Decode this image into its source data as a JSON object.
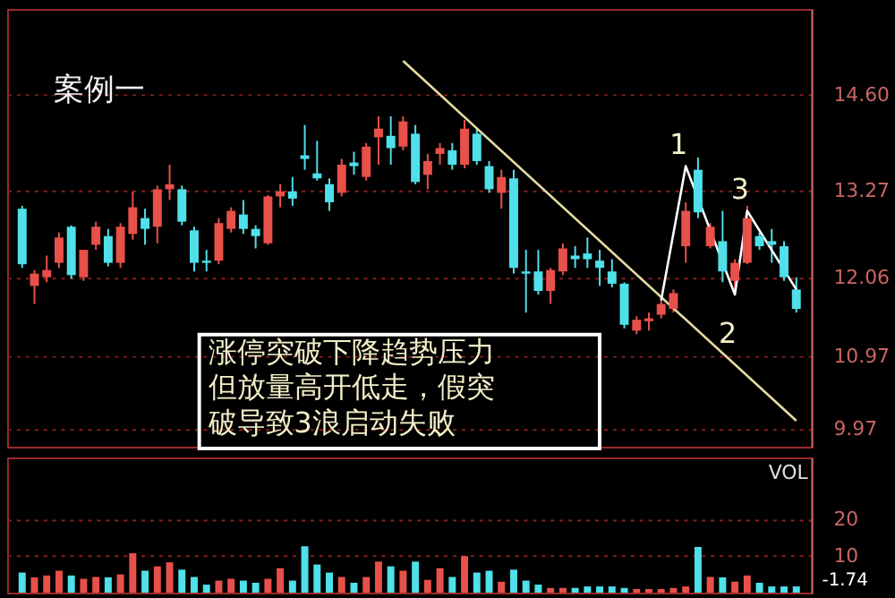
{
  "chart_data": [
    {
      "type": "candlestick",
      "title": "案例一",
      "categories": [
        null,
        null,
        null,
        null,
        null,
        null,
        null,
        null,
        null,
        null,
        null,
        null,
        null,
        null,
        null,
        null,
        null,
        null,
        null,
        null,
        null,
        null,
        null,
        null,
        null,
        null,
        null,
        null,
        null,
        null,
        null,
        null,
        null,
        null,
        null,
        null,
        null,
        null,
        null,
        null,
        null,
        null,
        null,
        null,
        null,
        null,
        null,
        null,
        null,
        null,
        null,
        null,
        null,
        null,
        null,
        null,
        null,
        null,
        null,
        null,
        null,
        null,
        null,
        null
      ],
      "ohlc": [
        [
          13.02,
          13.06,
          12.2,
          12.25
        ],
        [
          11.95,
          12.17,
          11.7,
          12.12
        ],
        [
          12.07,
          12.37,
          12.0,
          12.17
        ],
        [
          12.27,
          12.69,
          12.2,
          12.62
        ],
        [
          12.77,
          12.79,
          12.05,
          12.1
        ],
        [
          12.07,
          12.45,
          12.02,
          12.45
        ],
        [
          12.52,
          12.84,
          12.45,
          12.77
        ],
        [
          12.64,
          12.74,
          12.22,
          12.27
        ],
        [
          12.27,
          12.82,
          12.2,
          12.77
        ],
        [
          12.67,
          13.26,
          12.59,
          13.04
        ],
        [
          12.89,
          13.02,
          12.52,
          12.74
        ],
        [
          12.77,
          13.34,
          12.54,
          13.29
        ],
        [
          13.29,
          13.63,
          13.14,
          13.36
        ],
        [
          13.29,
          13.34,
          12.79,
          12.84
        ],
        [
          12.72,
          12.77,
          12.15,
          12.27
        ],
        [
          12.3,
          12.45,
          12.15,
          12.27
        ],
        [
          12.3,
          12.89,
          12.25,
          12.82
        ],
        [
          12.74,
          13.04,
          12.69,
          12.99
        ],
        [
          12.94,
          13.14,
          12.67,
          12.74
        ],
        [
          12.74,
          12.79,
          12.47,
          12.64
        ],
        [
          12.54,
          13.21,
          12.52,
          13.19
        ],
        [
          13.19,
          13.36,
          13.04,
          13.26
        ],
        [
          13.26,
          13.46,
          13.06,
          13.16
        ],
        [
          13.76,
          14.18,
          13.56,
          13.71
        ],
        [
          13.51,
          13.96,
          13.41,
          13.44
        ],
        [
          13.36,
          13.44,
          12.99,
          13.11
        ],
        [
          13.24,
          13.71,
          13.19,
          13.63
        ],
        [
          13.66,
          13.81,
          13.49,
          13.61
        ],
        [
          13.46,
          13.93,
          13.41,
          13.88
        ],
        [
          14.01,
          14.3,
          13.63,
          14.13
        ],
        [
          14.03,
          14.3,
          13.63,
          13.86
        ],
        [
          13.88,
          14.3,
          13.83,
          14.23
        ],
        [
          14.06,
          14.18,
          13.36,
          13.39
        ],
        [
          13.49,
          13.78,
          13.29,
          13.68
        ],
        [
          13.78,
          13.93,
          13.63,
          13.86
        ],
        [
          13.83,
          13.93,
          13.56,
          13.63
        ],
        [
          13.63,
          14.25,
          13.58,
          14.13
        ],
        [
          14.06,
          14.13,
          13.63,
          13.68
        ],
        [
          13.61,
          13.68,
          13.24,
          13.29
        ],
        [
          13.24,
          13.56,
          13.02,
          13.46
        ],
        [
          13.44,
          13.56,
          12.12,
          12.2
        ],
        [
          12.15,
          12.45,
          11.58,
          12.12
        ],
        [
          12.15,
          12.45,
          11.83,
          11.88
        ],
        [
          11.88,
          12.2,
          11.7,
          12.17
        ],
        [
          12.15,
          12.54,
          12.1,
          12.47
        ],
        [
          12.37,
          12.5,
          12.2,
          12.32
        ],
        [
          12.4,
          12.62,
          12.2,
          12.32
        ],
        [
          12.3,
          12.45,
          11.95,
          12.2
        ],
        [
          12.15,
          12.32,
          11.93,
          11.98
        ],
        [
          11.98,
          12.0,
          11.36,
          11.41
        ],
        [
          11.33,
          11.53,
          11.28,
          11.48
        ],
        [
          11.46,
          11.58,
          11.33,
          11.5
        ],
        [
          11.55,
          11.75,
          11.5,
          11.7
        ],
        [
          11.63,
          11.9,
          11.58,
          11.85
        ],
        [
          12.5,
          13.11,
          12.27,
          12.99
        ],
        [
          13.56,
          13.73,
          12.89,
          12.97
        ],
        [
          12.5,
          12.82,
          12.47,
          12.77
        ],
        [
          12.57,
          12.99,
          12.0,
          12.15
        ],
        [
          12.02,
          12.32,
          11.9,
          12.27
        ],
        [
          12.27,
          13.06,
          12.25,
          12.89
        ],
        [
          12.64,
          12.69,
          12.45,
          12.5
        ],
        [
          12.57,
          12.74,
          12.27,
          12.52
        ],
        [
          12.5,
          12.57,
          12.02,
          12.07
        ],
        [
          11.9,
          12.07,
          11.58,
          11.63
        ]
      ],
      "colors": [
        "#4fe0ea",
        "#e8504a",
        "#e8504a",
        "#e8504a",
        "#4fe0ea",
        "#e8504a",
        "#e8504a",
        "#4fe0ea",
        "#e8504a",
        "#e8504a",
        "#4fe0ea",
        "#e8504a",
        "#e8504a",
        "#4fe0ea",
        "#4fe0ea",
        "#4fe0ea",
        "#e8504a",
        "#e8504a",
        "#4fe0ea",
        "#4fe0ea",
        "#e8504a",
        "#e8504a",
        "#4fe0ea",
        "#4fe0ea",
        "#4fe0ea",
        "#4fe0ea",
        "#e8504a",
        "#4fe0ea",
        "#e8504a",
        "#e8504a",
        "#4fe0ea",
        "#e8504a",
        "#4fe0ea",
        "#e8504a",
        "#e8504a",
        "#4fe0ea",
        "#e8504a",
        "#4fe0ea",
        "#4fe0ea",
        "#e8504a",
        "#4fe0ea",
        "#4fe0ea",
        "#4fe0ea",
        "#e8504a",
        "#e8504a",
        "#4fe0ea",
        "#4fe0ea",
        "#4fe0ea",
        "#4fe0ea",
        "#4fe0ea",
        "#e8504a",
        "#e8504a",
        "#e8504a",
        "#e8504a",
        "#e8504a",
        "#4fe0ea",
        "#e8504a",
        "#4fe0ea",
        "#e8504a",
        "#e8504a",
        "#4fe0ea",
        "#4fe0ea",
        "#4fe0ea",
        "#4fe0ea"
      ],
      "series": [
        {
          "type": "line",
          "color": "#e6dca0",
          "values": [
            null,
            null,
            null,
            null,
            null,
            null,
            null,
            null,
            null,
            null,
            null,
            null,
            null,
            null,
            null,
            null,
            null,
            null,
            null,
            null,
            null,
            null,
            null,
            null,
            null,
            null,
            null,
            null,
            null,
            null,
            null,
            15.07,
            null,
            null,
            null,
            null,
            null,
            null,
            null,
            null,
            null,
            null,
            null,
            null,
            null,
            null,
            null,
            null,
            null,
            null,
            null,
            null,
            null,
            null,
            null,
            null,
            null,
            null,
            null,
            null,
            null,
            null,
            null,
            10.08
          ]
        },
        {
          "type": "line",
          "color": "#ffffff",
          "values": [
            null,
            null,
            null,
            null,
            null,
            null,
            null,
            null,
            null,
            null,
            null,
            null,
            null,
            null,
            null,
            null,
            null,
            null,
            null,
            null,
            null,
            null,
            null,
            null,
            null,
            null,
            null,
            null,
            null,
            null,
            null,
            null,
            null,
            null,
            null,
            null,
            null,
            null,
            null,
            null,
            null,
            null,
            null,
            null,
            null,
            null,
            null,
            null,
            null,
            null,
            null,
            null,
            11.75,
            null,
            13.61,
            null,
            null,
            null,
            11.83,
            12.99,
            null,
            null,
            null,
            11.9
          ]
        }
      ],
      "annotations": [
        "涨停突破下降趋势压力但放量高开低走，假突破导致3浪启动失败",
        "1",
        "2",
        "3"
      ],
      "ylim": [
        9.72,
        15.79
      ],
      "yticks": [
        {
          "value": 14.6,
          "label": "14.60"
        },
        13.27,
        12.06,
        10.97,
        9.97
      ],
      "grid": "y",
      "tick_labels": "y"
    },
    {
      "type": "bar",
      "title": "VOL",
      "categories": [
        null,
        null,
        null,
        null,
        null,
        null,
        null,
        null,
        null,
        null,
        null,
        null,
        null,
        null,
        null,
        null,
        null,
        null,
        null,
        null,
        null,
        null,
        null,
        null,
        null,
        null,
        null,
        null,
        null,
        null,
        null,
        null,
        null,
        null,
        null,
        null,
        null,
        null,
        null,
        null,
        null,
        null,
        null,
        null,
        null,
        null,
        null,
        null,
        null,
        null,
        null,
        null,
        null,
        null,
        null,
        null,
        null,
        null,
        null,
        null,
        null,
        null,
        null,
        null
      ],
      "values": [
        5.5,
        4.2,
        4.7,
        6,
        4.7,
        3.8,
        4.3,
        4.2,
        5,
        10.8,
        6,
        7.2,
        8.3,
        6.3,
        4.3,
        2.2,
        3.3,
        3.8,
        3.3,
        2.7,
        3.8,
        6.7,
        3.3,
        12.7,
        7.7,
        5.5,
        4.3,
        2.7,
        4.3,
        8.5,
        7.2,
        6,
        8.5,
        3.5,
        6.7,
        4.3,
        10,
        5.5,
        6,
        3,
        6.3,
        3.3,
        2.2,
        1.3,
        1.3,
        1.3,
        1.7,
        1.7,
        1.7,
        1.3,
        1,
        1,
        1,
        1.3,
        1.7,
        12.5,
        4.3,
        4.2,
        3,
        4.7,
        2.7,
        1.7,
        1.7,
        1.7
      ],
      "colors": [
        "#4fe0ea",
        "#e8504a",
        "#e8504a",
        "#e8504a",
        "#4fe0ea",
        "#e8504a",
        "#e8504a",
        "#4fe0ea",
        "#e8504a",
        "#e8504a",
        "#4fe0ea",
        "#e8504a",
        "#e8504a",
        "#4fe0ea",
        "#4fe0ea",
        "#4fe0ea",
        "#e8504a",
        "#e8504a",
        "#4fe0ea",
        "#4fe0ea",
        "#e8504a",
        "#e8504a",
        "#4fe0ea",
        "#4fe0ea",
        "#4fe0ea",
        "#4fe0ea",
        "#e8504a",
        "#4fe0ea",
        "#e8504a",
        "#e8504a",
        "#4fe0ea",
        "#e8504a",
        "#4fe0ea",
        "#e8504a",
        "#e8504a",
        "#4fe0ea",
        "#e8504a",
        "#4fe0ea",
        "#4fe0ea",
        "#e8504a",
        "#4fe0ea",
        "#4fe0ea",
        "#4fe0ea",
        "#e8504a",
        "#e8504a",
        "#4fe0ea",
        "#4fe0ea",
        "#4fe0ea",
        "#4fe0ea",
        "#4fe0ea",
        "#e8504a",
        "#e8504a",
        "#e8504a",
        "#e8504a",
        "#e8504a",
        "#4fe0ea",
        "#e8504a",
        "#4fe0ea",
        "#e8504a",
        "#e8504a",
        "#4fe0ea",
        "#4fe0ea",
        "#4fe0ea",
        "#4fe0ea"
      ],
      "annotations": [
        "-1.74"
      ],
      "ylim": [
        0,
        37
      ],
      "yticks": [
        10,
        20
      ],
      "grid": "y",
      "tick_labels": "y"
    }
  ]
}
